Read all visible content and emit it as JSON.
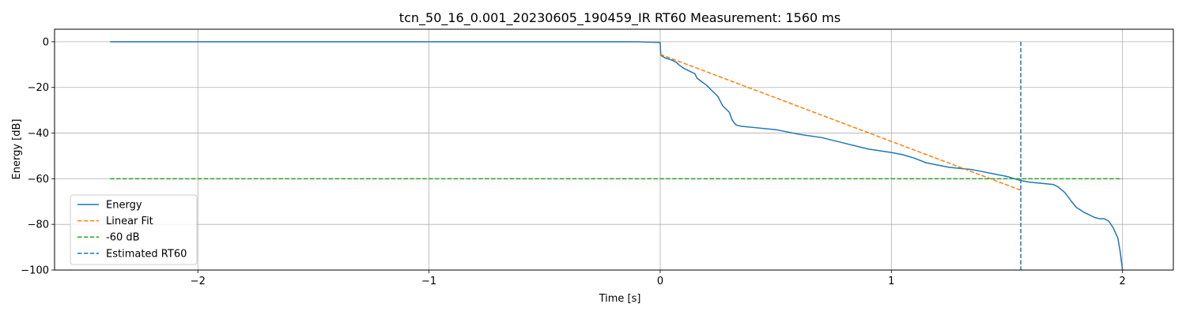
{
  "chart_data": {
    "type": "line",
    "title": "tcn_50_16_0.001_20230605_190459_IR RT60 Measurement: 1560 ms",
    "xlabel": "Time [s]",
    "ylabel": "Energy [dB]",
    "xlim": [
      -2.62,
      2.22
    ],
    "ylim": [
      -100,
      5.5
    ],
    "xticks": [
      -2,
      -1,
      0,
      1,
      2
    ],
    "yticks": [
      0,
      -20,
      -40,
      -60,
      -80,
      -100
    ],
    "xtick_labels": [
      "−2",
      "−1",
      "0",
      "1",
      "2"
    ],
    "ytick_labels": [
      "0",
      "−20",
      "−40",
      "−60",
      "−80",
      "−100"
    ],
    "grid": true,
    "legend_position": "lower-left",
    "series": [
      {
        "name": "Energy",
        "color": "#1f77b4",
        "style": "solid",
        "x": [
          -2.38,
          -1.0,
          -0.5,
          -0.1,
          0.0,
          0.001,
          0.003,
          0.02,
          0.05,
          0.07,
          0.08,
          0.1,
          0.12,
          0.15,
          0.16,
          0.18,
          0.2,
          0.22,
          0.24,
          0.25,
          0.26,
          0.27,
          0.28,
          0.3,
          0.31,
          0.32,
          0.33,
          0.35,
          0.4,
          0.5,
          0.6,
          0.7,
          0.8,
          0.9,
          1.0,
          1.05,
          1.1,
          1.15,
          1.2,
          1.25,
          1.3,
          1.35,
          1.4,
          1.45,
          1.5,
          1.55,
          1.56,
          1.6,
          1.7,
          1.72,
          1.75,
          1.78,
          1.8,
          1.83,
          1.85,
          1.88,
          1.9,
          1.92,
          1.94,
          1.96,
          1.98,
          1.99,
          2.0
        ],
        "y": [
          0,
          0,
          0,
          0,
          -0.3,
          -3.0,
          -6.0,
          -7.0,
          -8.0,
          -9.0,
          -10.0,
          -11.5,
          -12.5,
          -14.0,
          -16.0,
          -17.5,
          -19.0,
          -21.0,
          -23.0,
          -24.0,
          -26.0,
          -28.0,
          -29.0,
          -31.0,
          -34.0,
          -35.5,
          -36.5,
          -37.0,
          -37.5,
          -38.5,
          -40.5,
          -42.0,
          -44.5,
          -47.0,
          -48.5,
          -49.5,
          -51.0,
          -53.0,
          -54.0,
          -55.0,
          -55.5,
          -56.0,
          -57.0,
          -58.0,
          -59.0,
          -60.5,
          -60.8,
          -61.5,
          -62.5,
          -63.5,
          -66.0,
          -70.0,
          -72.5,
          -74.5,
          -75.5,
          -77.0,
          -77.5,
          -77.5,
          -78.5,
          -81.5,
          -86.0,
          -92.0,
          -100
        ]
      },
      {
        "name": "Linear Fit",
        "color": "#ff7f0e",
        "style": "dashed",
        "x": [
          0.0,
          1.56
        ],
        "y": [
          -5.5,
          -65.0
        ]
      },
      {
        "name": "-60 dB",
        "color": "#2ca02c",
        "style": "dashed",
        "x": [
          -2.38,
          2.0
        ],
        "y": [
          -60,
          -60
        ]
      },
      {
        "name": "Estimated RT60",
        "color": "#1f77b4",
        "style": "dashed",
        "x": [
          1.56,
          1.56
        ],
        "y": [
          0,
          -100
        ]
      }
    ]
  }
}
